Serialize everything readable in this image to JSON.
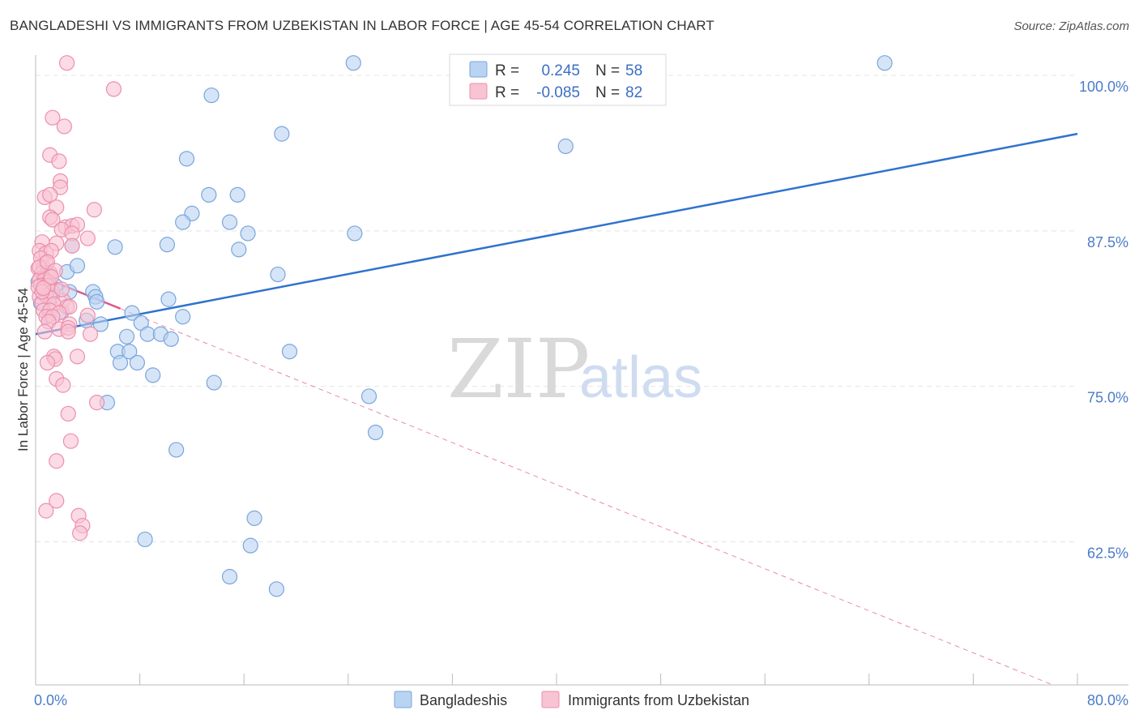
{
  "header": {
    "title": "BANGLADESHI VS IMMIGRANTS FROM UZBEKISTAN IN LABOR FORCE | AGE 45-54 CORRELATION CHART",
    "source": "Source: ZipAtlas.com"
  },
  "watermark": {
    "zip": "ZIP",
    "atlas": "atlas"
  },
  "colors": {
    "blue_fill": "#b9d3f2",
    "blue_stroke": "#7aa5dd",
    "blue_line": "#2f72cf",
    "pink_fill": "#f8c3d3",
    "pink_stroke": "#ec8fab",
    "pink_line": "#e0588a",
    "grid": "#e4e4e4",
    "axis_text": "#4a7cc9"
  },
  "legend": {
    "rows": [
      {
        "r_label": "R =",
        "r_value": "0.245",
        "n_label": "N =",
        "n_value": "58"
      },
      {
        "r_label": "R =",
        "r_value": "-0.085",
        "n_label": "N =",
        "n_value": "82"
      }
    ]
  },
  "chart_data": {
    "type": "scatter",
    "title": "BANGLADESHI VS IMMIGRANTS FROM UZBEKISTAN IN LABOR FORCE | AGE 45-54 CORRELATION CHART",
    "xlabel": "",
    "ylabel": "In Labor Force | Age 45-54",
    "xlim": [
      0,
      80
    ],
    "ylim": [
      51,
      101.5
    ],
    "x_tick_labels": [
      {
        "value": 0,
        "label": "0.0%"
      },
      {
        "value": 80,
        "label": "80.0%"
      }
    ],
    "y_tick_labels": [
      {
        "value": 100,
        "label": "100.0%"
      },
      {
        "value": 87.5,
        "label": "87.5%"
      },
      {
        "value": 75,
        "label": "75.0%"
      },
      {
        "value": 62.5,
        "label": "62.5%"
      }
    ],
    "series": [
      {
        "name": "Bangladeshis",
        "color_key": "blue",
        "trend": {
          "x": [
            0,
            80
          ],
          "y": [
            79.2,
            95.3
          ],
          "dashed_from": null
        },
        "points": [
          [
            24.4,
            101.0
          ],
          [
            65.2,
            101.0
          ],
          [
            13.5,
            98.4
          ],
          [
            18.9,
            95.3
          ],
          [
            40.7,
            94.3
          ],
          [
            11.6,
            93.3
          ],
          [
            13.3,
            90.4
          ],
          [
            15.5,
            90.4
          ],
          [
            12.0,
            88.9
          ],
          [
            11.3,
            88.2
          ],
          [
            14.9,
            88.2
          ],
          [
            16.3,
            87.3
          ],
          [
            24.5,
            87.3
          ],
          [
            6.1,
            86.2
          ],
          [
            10.1,
            86.4
          ],
          [
            2.8,
            86.3
          ],
          [
            15.6,
            86.0
          ],
          [
            2.4,
            84.2
          ],
          [
            18.6,
            84.0
          ],
          [
            3.2,
            84.7
          ],
          [
            0.8,
            83.4
          ],
          [
            1.5,
            83.1
          ],
          [
            2.6,
            82.6
          ],
          [
            4.4,
            82.6
          ],
          [
            4.6,
            82.2
          ],
          [
            10.2,
            82.0
          ],
          [
            4.7,
            81.8
          ],
          [
            7.4,
            80.9
          ],
          [
            11.3,
            80.6
          ],
          [
            3.9,
            80.3
          ],
          [
            5.0,
            80.0
          ],
          [
            8.1,
            80.1
          ],
          [
            7.0,
            79.0
          ],
          [
            8.6,
            79.2
          ],
          [
            9.6,
            79.2
          ],
          [
            10.4,
            78.8
          ],
          [
            6.3,
            77.8
          ],
          [
            7.2,
            77.8
          ],
          [
            19.5,
            77.8
          ],
          [
            6.5,
            76.9
          ],
          [
            7.8,
            76.9
          ],
          [
            9.0,
            75.9
          ],
          [
            13.7,
            75.3
          ],
          [
            25.6,
            74.2
          ],
          [
            5.5,
            73.7
          ],
          [
            26.1,
            71.3
          ],
          [
            10.8,
            69.9
          ],
          [
            16.8,
            64.4
          ],
          [
            8.4,
            62.7
          ],
          [
            16.5,
            62.2
          ],
          [
            14.9,
            59.7
          ],
          [
            18.5,
            58.7
          ],
          [
            0.2,
            83.4
          ],
          [
            0.4,
            81.7
          ],
          [
            1.0,
            80.7
          ],
          [
            1.3,
            82.3
          ],
          [
            2.0,
            81.0
          ],
          [
            0.6,
            84.6
          ]
        ]
      },
      {
        "name": "Immigrants from Uzbekistan",
        "color_key": "pink",
        "trend": {
          "x": [
            0,
            80
          ],
          "y": [
            84.0,
            50.2
          ],
          "dashed_from": 6.5
        },
        "points": [
          [
            2.4,
            101.0
          ],
          [
            6.0,
            98.9
          ],
          [
            1.3,
            96.6
          ],
          [
            2.2,
            95.9
          ],
          [
            1.1,
            93.6
          ],
          [
            1.8,
            93.1
          ],
          [
            1.9,
            91.5
          ],
          [
            1.9,
            91.0
          ],
          [
            0.7,
            90.2
          ],
          [
            1.1,
            90.4
          ],
          [
            1.6,
            89.4
          ],
          [
            4.5,
            89.2
          ],
          [
            1.1,
            88.6
          ],
          [
            1.3,
            88.4
          ],
          [
            2.3,
            87.8
          ],
          [
            2.8,
            87.9
          ],
          [
            3.2,
            88.0
          ],
          [
            2.0,
            87.6
          ],
          [
            2.8,
            87.3
          ],
          [
            4.0,
            86.9
          ],
          [
            0.5,
            86.6
          ],
          [
            1.6,
            86.5
          ],
          [
            2.8,
            86.3
          ],
          [
            0.3,
            85.9
          ],
          [
            0.8,
            85.7
          ],
          [
            1.2,
            85.9
          ],
          [
            0.4,
            85.3
          ],
          [
            0.8,
            84.9
          ],
          [
            0.2,
            84.5
          ],
          [
            0.5,
            84.1
          ],
          [
            0.9,
            84.1
          ],
          [
            1.1,
            84.1
          ],
          [
            0.3,
            83.6
          ],
          [
            0.7,
            83.6
          ],
          [
            1.0,
            83.4
          ],
          [
            0.4,
            83.1
          ],
          [
            0.9,
            83.1
          ],
          [
            1.3,
            82.6
          ],
          [
            0.3,
            82.2
          ],
          [
            0.8,
            82.3
          ],
          [
            1.2,
            82.1
          ],
          [
            2.1,
            81.9
          ],
          [
            0.5,
            81.7
          ],
          [
            1.4,
            81.6
          ],
          [
            2.4,
            81.4
          ],
          [
            2.6,
            81.4
          ],
          [
            0.6,
            81.1
          ],
          [
            1.1,
            81.1
          ],
          [
            1.8,
            80.9
          ],
          [
            0.8,
            80.6
          ],
          [
            1.3,
            80.6
          ],
          [
            4.0,
            80.7
          ],
          [
            1.0,
            80.2
          ],
          [
            2.6,
            80.0
          ],
          [
            1.8,
            79.6
          ],
          [
            2.5,
            79.7
          ],
          [
            0.7,
            79.4
          ],
          [
            2.5,
            79.4
          ],
          [
            4.2,
            79.2
          ],
          [
            1.4,
            77.4
          ],
          [
            3.2,
            77.4
          ],
          [
            1.5,
            77.2
          ],
          [
            0.9,
            76.9
          ],
          [
            1.6,
            75.6
          ],
          [
            2.1,
            75.1
          ],
          [
            4.7,
            73.7
          ],
          [
            2.5,
            72.8
          ],
          [
            2.7,
            70.6
          ],
          [
            1.6,
            69.0
          ],
          [
            1.6,
            65.8
          ],
          [
            0.8,
            65.0
          ],
          [
            3.3,
            64.6
          ],
          [
            3.6,
            63.8
          ],
          [
            3.4,
            63.2
          ],
          [
            0.2,
            83.0
          ],
          [
            0.5,
            82.6
          ],
          [
            0.3,
            84.6
          ],
          [
            0.9,
            85.0
          ],
          [
            1.5,
            84.3
          ],
          [
            0.6,
            82.9
          ],
          [
            2.0,
            82.8
          ],
          [
            1.2,
            83.8
          ]
        ]
      }
    ],
    "legend": [
      "Bangladeshis",
      "Immigrants from Uzbekistan"
    ],
    "legend_position": "bottom",
    "stats_position": "top-center",
    "grid": true
  }
}
